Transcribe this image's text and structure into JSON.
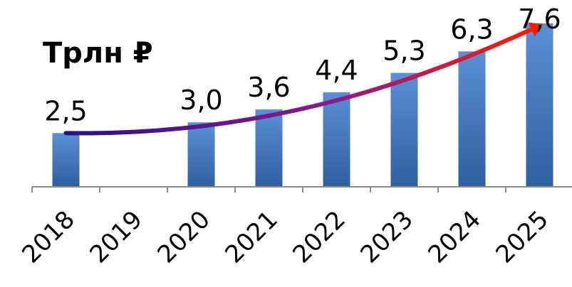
{
  "chart_data": {
    "type": "bar",
    "unit_label": "Трлн ₽",
    "categories": [
      "2018",
      "2019",
      "2020",
      "2021",
      "2022",
      "2023",
      "2024",
      "2025"
    ],
    "values": [
      2.5,
      null,
      3.0,
      3.6,
      4.4,
      5.3,
      6.3,
      7.6
    ],
    "value_labels": [
      "2,5",
      "",
      "3,0",
      "3,6",
      "4,4",
      "5,3",
      "6,3",
      "7,6"
    ],
    "ylim": [
      0,
      7.6
    ],
    "grid": false,
    "legend": "none",
    "trend_arrow": {
      "from": "2018",
      "to": "2025",
      "gradient": [
        "#2b0f8c",
        "#8b1a8c",
        "#ff1a00"
      ]
    },
    "colors": {
      "bar_top": "#5b8fd6",
      "bar_bottom": "#2f5f9e",
      "axis": "#8c8c8c"
    }
  }
}
